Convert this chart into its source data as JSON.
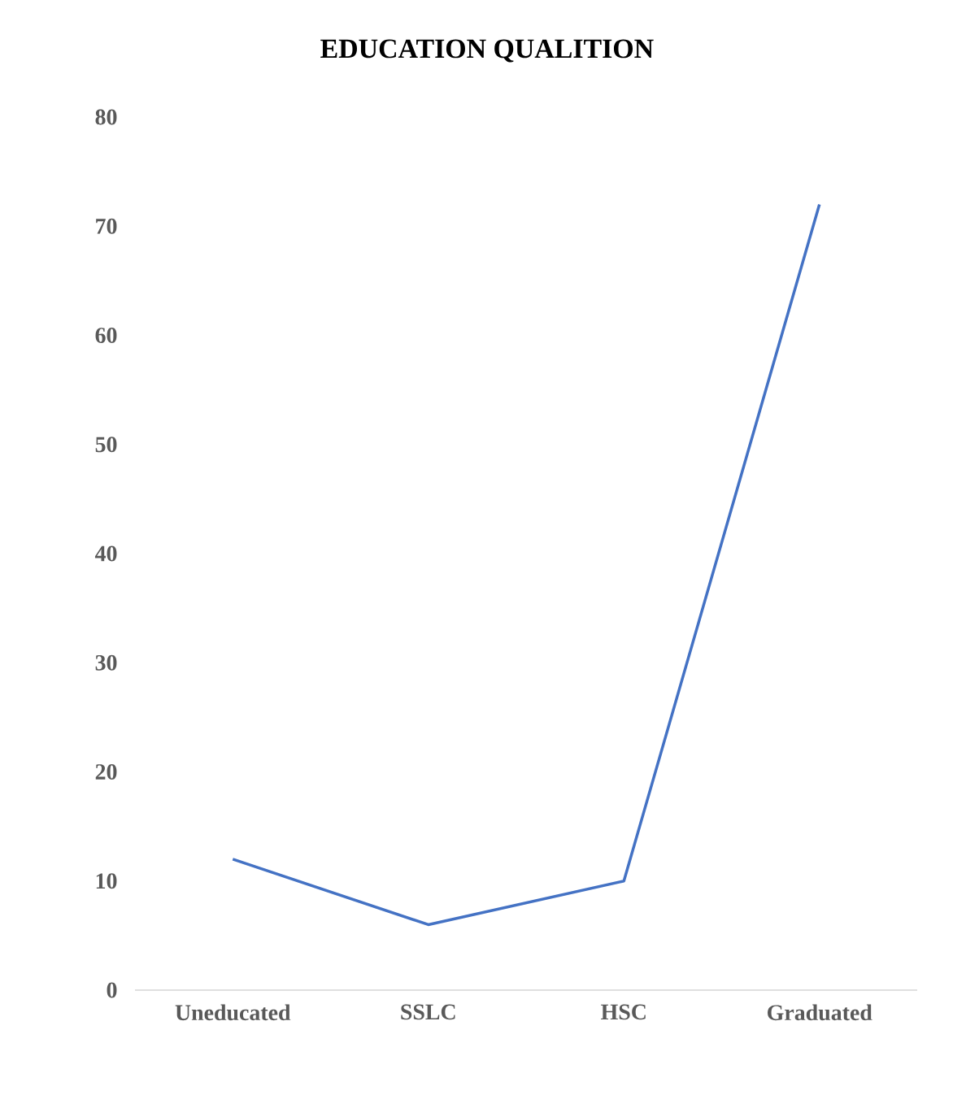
{
  "chart_data": {
    "type": "line",
    "title": "EDUCATION QUALITION",
    "categories": [
      "Uneducated",
      "SSLC",
      "HSC",
      "Graduated"
    ],
    "series": [
      {
        "color": "#4472c4",
        "values": [
          12,
          6,
          10,
          72
        ]
      }
    ],
    "ylim": [
      0,
      80
    ],
    "yticks": [
      0,
      10,
      20,
      30,
      40,
      50,
      60,
      70,
      80
    ],
    "grid": false,
    "marker": "none",
    "line_style": "solid"
  }
}
